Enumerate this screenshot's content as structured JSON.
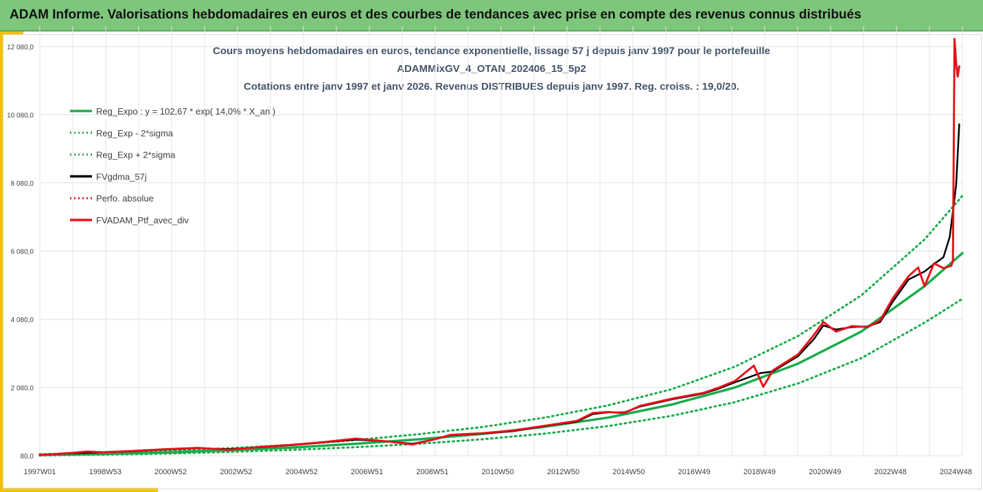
{
  "header": {
    "title": "ADAM Informe. Valorisations hebdomadaires en euros et des courbes de tendances avec prise en compte des revenus connus distribués"
  },
  "colors": {
    "header_bg": "#7dc67b",
    "accent": "#f2c200",
    "trend": "#1aab4b",
    "smooth": "#000000",
    "portfolio": "#e8111a",
    "title_text": "#44546a"
  },
  "chart_data": {
    "type": "line",
    "title_lines": [
      "Cours moyens hebdomadaires  en euros, tendance exponentielle, lissage 57 j depuis janv 1997 pour le portefeuille",
      "ADAMMixGV_4_OTAN_202406_15_5p2",
      "Cotations entre janv 1997 et janv 2026. Revenus DISTRIBUES depuis janv 1997. Reg. croiss. : 19,0/20."
    ],
    "xlabel": "",
    "ylabel": "",
    "x_tick_labels": [
      "1997W01",
      "1998W53",
      "2000W52",
      "2002W52",
      "2004W52",
      "2006W51",
      "2008W51",
      "2010W50",
      "2012W50",
      "2014W50",
      "2016W49",
      "2018W49",
      "2020W49",
      "2022W48",
      "2024W48"
    ],
    "y_tick_labels": [
      "80,0",
      "2 080,0",
      "4 080,0",
      "6 080,0",
      "8 080,0",
      "10 080,0",
      "12 080,0"
    ],
    "y_ticks": [
      80,
      2080,
      4080,
      6080,
      8080,
      10080,
      12080
    ],
    "ylim": [
      80,
      12680
    ],
    "xlim": [
      1997.0,
      2026.2
    ],
    "grid": true,
    "legend_position": "top-left",
    "legend": [
      {
        "key": "trend",
        "label": "Reg_Expo : y = 102,67 * exp( 14,0% *  X_an )",
        "color": "#1aab4b",
        "style": "solid"
      },
      {
        "key": "lower",
        "label": "Reg_Exp - 2*sigma",
        "color": "#1aab4b",
        "style": "dotted"
      },
      {
        "key": "upper",
        "label": "Reg_Exp + 2*sigma",
        "color": "#1aab4b",
        "style": "dotted"
      },
      {
        "key": "smooth",
        "label": "FVgdma_57j",
        "color": "#000000",
        "style": "solid"
      },
      {
        "key": "perf",
        "label": "Perfo. absolue",
        "color": "#e8111a",
        "style": "dotted"
      },
      {
        "key": "portfolio",
        "label": "FVADAM_Ptf_avec_div",
        "color": "#e8111a",
        "style": "solid"
      }
    ],
    "series": [
      {
        "key": "trend",
        "x": [
          1997.0,
          1999.0,
          2001.0,
          2003.0,
          2005.0,
          2007.0,
          2009.0,
          2011.0,
          2013.0,
          2015.0,
          2017.0,
          2019.0,
          2021.0,
          2023.0,
          2025.0,
          2026.2
        ],
        "values": [
          103,
          130,
          175,
          240,
          320,
          430,
          560,
          720,
          930,
          1200,
          1580,
          2080,
          2780,
          3720,
          5050,
          6020
        ]
      },
      {
        "key": "lower",
        "x": [
          1997.0,
          1999.0,
          2001.0,
          2003.0,
          2005.0,
          2007.0,
          2009.0,
          2011.0,
          2013.0,
          2015.0,
          2017.0,
          2019.0,
          2021.0,
          2023.0,
          2025.0,
          2026.2
        ],
        "values": [
          85,
          110,
          140,
          190,
          250,
          330,
          430,
          560,
          730,
          950,
          1250,
          1650,
          2200,
          2940,
          3980,
          4680
        ]
      },
      {
        "key": "upper",
        "x": [
          1997.0,
          1999.0,
          2001.0,
          2003.0,
          2005.0,
          2007.0,
          2009.0,
          2011.0,
          2013.0,
          2015.0,
          2017.0,
          2019.0,
          2021.0,
          2023.0,
          2025.0,
          2026.2
        ],
        "values": [
          125,
          165,
          220,
          300,
          400,
          540,
          710,
          920,
          1200,
          1560,
          2030,
          2690,
          3590,
          4780,
          6420,
          7700
        ]
      },
      {
        "key": "smooth",
        "x": [
          1997.0,
          1998.0,
          1999.0,
          2000.0,
          2001.0,
          2002.0,
          2003.0,
          2004.0,
          2005.0,
          2006.0,
          2007.0,
          2008.0,
          2008.8,
          2009.5,
          2010.0,
          2011.0,
          2012.0,
          2013.0,
          2014.0,
          2014.5,
          2015.0,
          2015.5,
          2016.0,
          2017.0,
          2018.0,
          2018.5,
          2019.0,
          2019.8,
          2020.2,
          2021.0,
          2021.5,
          2021.8,
          2022.2,
          2022.7,
          2023.2,
          2023.6,
          2024.0,
          2024.5,
          2025.0,
          2025.3,
          2025.6,
          2025.8,
          2026.0,
          2026.1
        ],
        "values": [
          100,
          150,
          180,
          210,
          260,
          300,
          270,
          330,
          390,
          470,
          550,
          500,
          430,
          560,
          680,
          730,
          800,
          950,
          1080,
          1300,
          1350,
          1350,
          1520,
          1730,
          1900,
          2050,
          2230,
          2500,
          2550,
          3000,
          3500,
          3900,
          3780,
          3850,
          3870,
          4000,
          4600,
          5250,
          5480,
          5700,
          5900,
          6500,
          8000,
          9800
        ]
      },
      {
        "key": "portfolio",
        "x": [
          1997.0,
          1998.0,
          1998.5,
          1999.0,
          2000.0,
          2001.0,
          2002.0,
          2003.0,
          2004.0,
          2005.0,
          2006.0,
          2007.0,
          2008.0,
          2008.8,
          2009.5,
          2010.0,
          2011.0,
          2012.0,
          2013.0,
          2014.0,
          2014.5,
          2015.0,
          2015.5,
          2016.0,
          2017.0,
          2018.0,
          2018.5,
          2019.0,
          2019.6,
          2019.9,
          2020.2,
          2021.0,
          2021.5,
          2021.8,
          2022.2,
          2022.7,
          2023.2,
          2023.6,
          2024.0,
          2024.5,
          2024.8,
          2025.0,
          2025.3,
          2025.6,
          2025.85,
          2025.9,
          2025.95,
          2026.0,
          2026.05,
          2026.1
        ],
        "values": [
          100,
          160,
          200,
          180,
          220,
          270,
          310,
          250,
          340,
          400,
          480,
          580,
          500,
          410,
          560,
          690,
          740,
          820,
          960,
          1100,
          1330,
          1360,
          1330,
          1540,
          1750,
          1920,
          2080,
          2270,
          2720,
          2100,
          2580,
          3050,
          3620,
          4000,
          3720,
          3880,
          3850,
          4050,
          4700,
          5350,
          5600,
          5050,
          5720,
          5580,
          5650,
          5800,
          12300,
          11600,
          11200,
          11500
        ]
      }
    ]
  }
}
